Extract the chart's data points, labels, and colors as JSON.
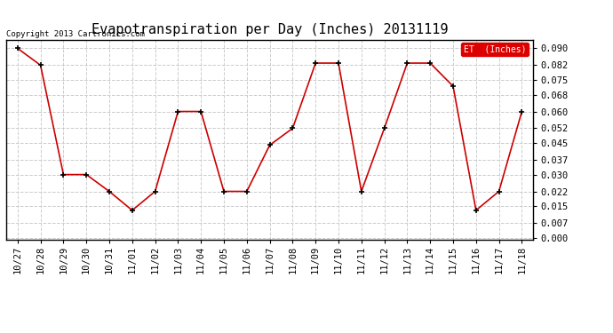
{
  "title": "Evapotranspiration per Day (Inches) 20131119",
  "copyright_text": "Copyright 2013 Cartronics.com",
  "legend_label": "ET  (Inches)",
  "x_labels": [
    "10/27",
    "10/28",
    "10/29",
    "10/30",
    "10/31",
    "11/01",
    "11/02",
    "11/03",
    "11/04",
    "11/05",
    "11/06",
    "11/07",
    "11/08",
    "11/09",
    "11/10",
    "11/11",
    "11/12",
    "11/13",
    "11/14",
    "11/15",
    "11/16",
    "11/17",
    "11/18"
  ],
  "y_values": [
    0.09,
    0.082,
    0.03,
    0.03,
    0.022,
    0.013,
    0.022,
    0.06,
    0.06,
    0.022,
    0.022,
    0.044,
    0.052,
    0.083,
    0.083,
    0.022,
    0.052,
    0.083,
    0.083,
    0.072,
    0.013,
    0.022,
    0.06
  ],
  "line_color": "#cc0000",
  "marker_color": "black",
  "background_color": "#ffffff",
  "grid_color": "#cccccc",
  "y_ticks": [
    0.0,
    0.007,
    0.015,
    0.022,
    0.03,
    0.037,
    0.045,
    0.052,
    0.06,
    0.068,
    0.075,
    0.082,
    0.09
  ],
  "ylim": [
    -0.001,
    0.094
  ],
  "title_fontsize": 11,
  "tick_fontsize": 7.5,
  "copyright_fontsize": 6.5,
  "legend_bg": "#dd0000",
  "legend_text_color": "#ffffff",
  "legend_fontsize": 7
}
